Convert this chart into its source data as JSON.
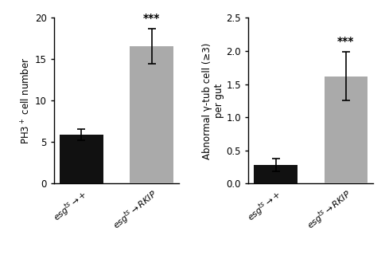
{
  "chart1": {
    "cat1": "esg$^{ts}$$\\rightarrow$$+$",
    "cat2": "esg$^{ts}$$\\rightarrow$RKIP",
    "values": [
      5.9,
      16.6
    ],
    "errors": [
      0.65,
      2.1
    ],
    "colors": [
      "#111111",
      "#aaaaaa"
    ],
    "ylabel": "PH3$^+$ cell number",
    "ylim": [
      0,
      20
    ],
    "yticks": [
      0,
      5,
      10,
      15,
      20
    ],
    "significance": "***",
    "sig_bar_index": 1
  },
  "chart2": {
    "cat1": "esg$^{ts}$$\\rightarrow$$+$",
    "cat2": "esg$^{ts}$$\\rightarrow$RKIP",
    "values": [
      0.28,
      1.62
    ],
    "errors": [
      0.1,
      0.37
    ],
    "colors": [
      "#111111",
      "#aaaaaa"
    ],
    "ylabel": "Abnormal γ-tub cell (≥3)\nper gut",
    "ylim": [
      0,
      2.5
    ],
    "yticks": [
      0.0,
      0.5,
      1.0,
      1.5,
      2.0,
      2.5
    ],
    "significance": "***",
    "sig_bar_index": 1
  },
  "background_color": "#ffffff",
  "bar_width": 0.62,
  "fontsize_label": 8.5,
  "fontsize_tick": 8.5,
  "fontsize_sig": 10,
  "fontsize_xticklabel": 8
}
